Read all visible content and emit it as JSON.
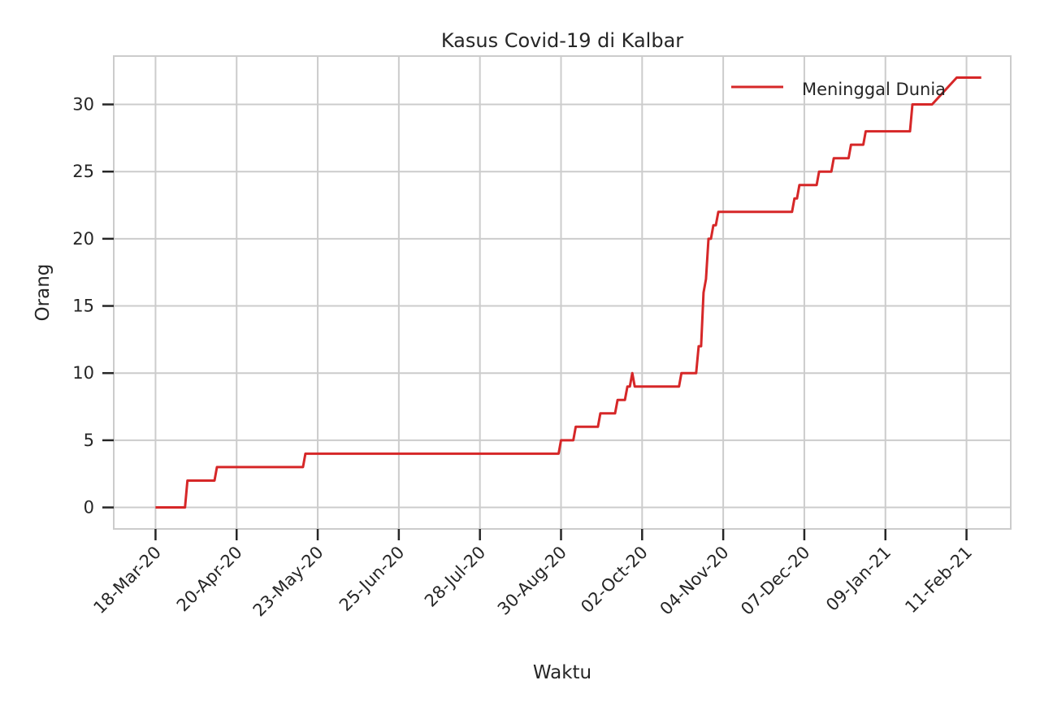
{
  "chart_data": {
    "type": "line",
    "title": "Kasus Covid-19 di Kalbar",
    "xlabel": "Waktu",
    "ylabel": "Orang",
    "x_tick_labels": [
      "18-Mar-20",
      "20-Apr-20",
      "23-May-20",
      "25-Jun-20",
      "28-Jul-20",
      "30-Aug-20",
      "02-Oct-20",
      "04-Nov-20",
      "07-Dec-20",
      "09-Jan-21",
      "11-Feb-21"
    ],
    "x_tick_dates": [
      "2020-03-18",
      "2020-04-20",
      "2020-05-23",
      "2020-06-25",
      "2020-07-28",
      "2020-08-30",
      "2020-10-02",
      "2020-11-04",
      "2020-12-07",
      "2021-01-09",
      "2021-02-11"
    ],
    "xlim": [
      "2020-03-01",
      "2021-03-01"
    ],
    "ylim": [
      -1.6,
      33.6
    ],
    "y_ticks": [
      0,
      5,
      10,
      15,
      20,
      25,
      30
    ],
    "grid": true,
    "legend_position": "top-right",
    "series": [
      {
        "name": "Meninggal Dunia",
        "color": "#d62728",
        "x": [
          "2020-03-18",
          "2020-03-30",
          "2020-03-31",
          "2020-04-11",
          "2020-04-12",
          "2020-05-17",
          "2020-05-18",
          "2020-08-29",
          "2020-08-30",
          "2020-09-04",
          "2020-09-05",
          "2020-09-14",
          "2020-09-15",
          "2020-09-21",
          "2020-09-22",
          "2020-09-25",
          "2020-09-26",
          "2020-09-27",
          "2020-09-28",
          "2020-09-29",
          "2020-09-30",
          "2020-10-17",
          "2020-10-18",
          "2020-10-24",
          "2020-10-25",
          "2020-10-26",
          "2020-10-27",
          "2020-10-28",
          "2020-10-29",
          "2020-10-30",
          "2020-10-31",
          "2020-11-01",
          "2020-11-02",
          "2020-12-02",
          "2020-12-03",
          "2020-12-04",
          "2020-12-05",
          "2020-12-12",
          "2020-12-13",
          "2020-12-18",
          "2020-12-19",
          "2020-12-25",
          "2020-12-26",
          "2020-12-31",
          "2021-01-01",
          "2021-01-19",
          "2021-01-20",
          "2021-01-27",
          "2021-01-28",
          "2021-02-07",
          "2021-02-17"
        ],
        "y": [
          0,
          0,
          2,
          2,
          3,
          3,
          4,
          4,
          5,
          5,
          6,
          6,
          7,
          7,
          8,
          8,
          9,
          9,
          10,
          9,
          9,
          9,
          10,
          10,
          12,
          12,
          16,
          17,
          20,
          20,
          21,
          21,
          22,
          22,
          23,
          23,
          24,
          24,
          25,
          25,
          26,
          26,
          27,
          27,
          28,
          28,
          30,
          30,
          30,
          32,
          32
        ]
      }
    ]
  }
}
